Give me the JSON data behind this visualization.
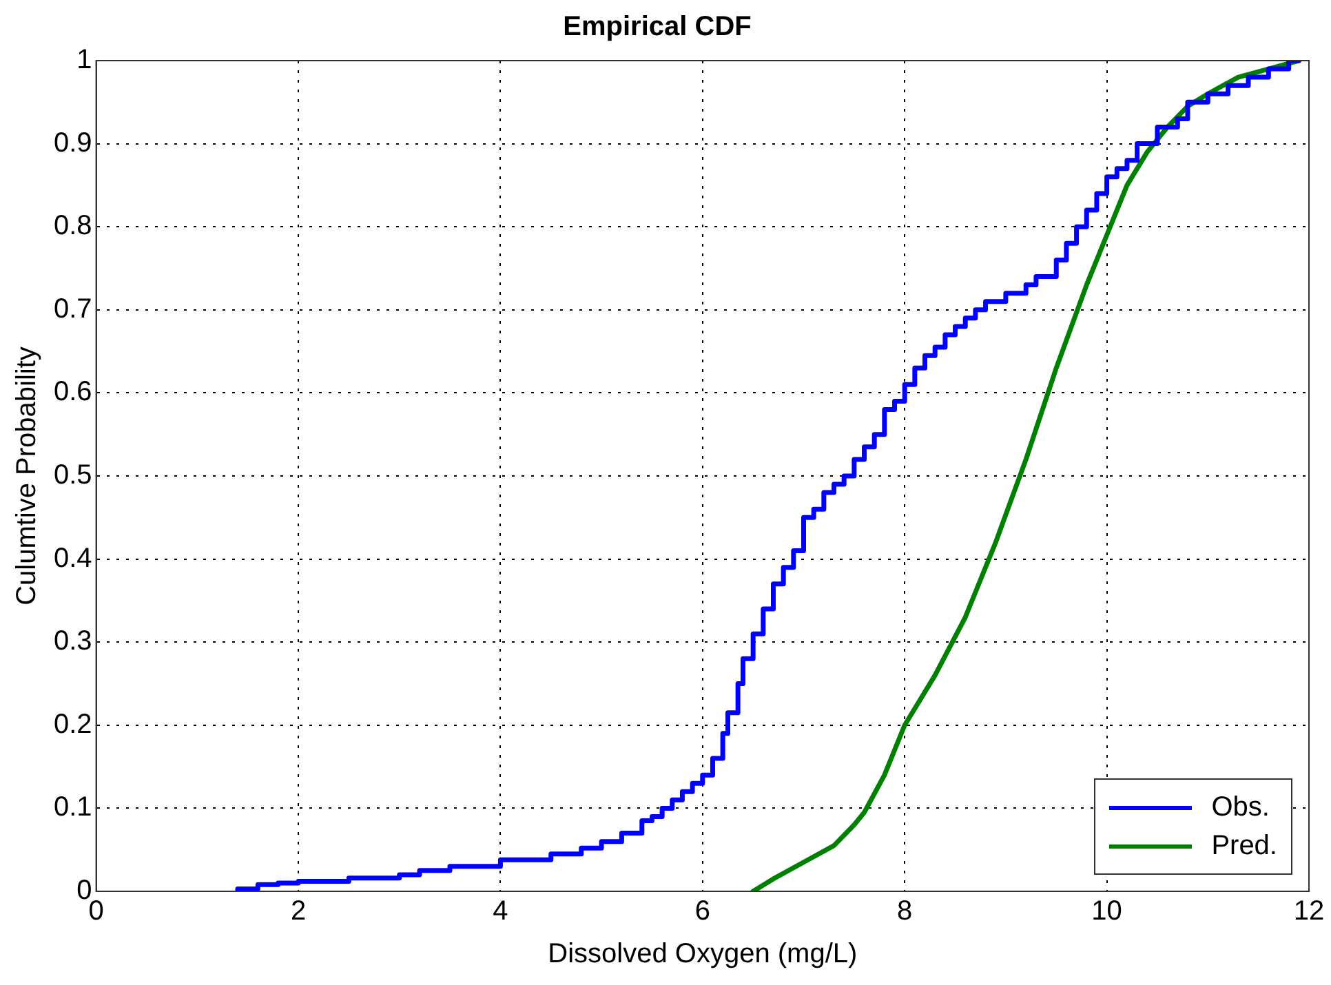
{
  "chart_data": {
    "type": "step",
    "title": "Empirical CDF",
    "xlabel": "Dissolved Oxygen (mg/L)",
    "ylabel": "Culumtive Probability",
    "xlim": [
      0,
      12
    ],
    "xticks": [
      0,
      2,
      4,
      6,
      8,
      10,
      12
    ],
    "ylim": [
      0,
      1
    ],
    "yticks": [
      0,
      0.1,
      0.2,
      0.3,
      0.4,
      0.5,
      0.6,
      0.7,
      0.8,
      0.9,
      1
    ],
    "grid": true,
    "legend": "bottom right",
    "series": [
      {
        "name": "Obs.",
        "color": "#0000ff",
        "x": [
          1.4,
          1.6,
          1.8,
          2.0,
          2.5,
          3.0,
          3.2,
          3.5,
          4.0,
          4.5,
          4.8,
          5.0,
          5.2,
          5.4,
          5.5,
          5.6,
          5.7,
          5.8,
          5.9,
          6.0,
          6.1,
          6.2,
          6.25,
          6.35,
          6.4,
          6.5,
          6.6,
          6.7,
          6.8,
          6.9,
          7.0,
          7.1,
          7.2,
          7.3,
          7.4,
          7.5,
          7.6,
          7.7,
          7.8,
          7.9,
          8.0,
          8.1,
          8.2,
          8.3,
          8.4,
          8.5,
          8.6,
          8.7,
          8.8,
          9.0,
          9.2,
          9.3,
          9.5,
          9.6,
          9.7,
          9.8,
          9.9,
          10.0,
          10.1,
          10.2,
          10.3,
          10.5,
          10.7,
          10.8,
          11.0,
          11.2,
          11.4,
          11.6,
          11.8,
          11.9
        ],
        "values": [
          0,
          0.003,
          0.008,
          0.01,
          0.012,
          0.016,
          0.02,
          0.025,
          0.03,
          0.038,
          0.045,
          0.052,
          0.06,
          0.07,
          0.085,
          0.09,
          0.1,
          0.11,
          0.12,
          0.13,
          0.14,
          0.16,
          0.19,
          0.215,
          0.25,
          0.28,
          0.31,
          0.34,
          0.37,
          0.39,
          0.41,
          0.45,
          0.46,
          0.48,
          0.49,
          0.5,
          0.52,
          0.535,
          0.55,
          0.58,
          0.59,
          0.61,
          0.63,
          0.645,
          0.655,
          0.67,
          0.68,
          0.69,
          0.7,
          0.71,
          0.72,
          0.73,
          0.74,
          0.76,
          0.78,
          0.8,
          0.82,
          0.84,
          0.86,
          0.87,
          0.88,
          0.9,
          0.92,
          0.93,
          0.95,
          0.96,
          0.97,
          0.98,
          0.99,
          1.0
        ]
      },
      {
        "name": "Pred.",
        "type": "line",
        "color": "#008000",
        "x": [
          6.5,
          6.7,
          7.0,
          7.3,
          7.5,
          7.6,
          7.8,
          8.0,
          8.3,
          8.6,
          8.9,
          9.2,
          9.5,
          9.8,
          10.0,
          10.2,
          10.4,
          10.6,
          10.8,
          11.0,
          11.3,
          11.6,
          11.9
        ],
        "values": [
          0,
          0.015,
          0.035,
          0.055,
          0.08,
          0.095,
          0.14,
          0.2,
          0.26,
          0.33,
          0.42,
          0.52,
          0.63,
          0.73,
          0.79,
          0.85,
          0.89,
          0.92,
          0.945,
          0.96,
          0.98,
          0.99,
          1.0
        ]
      }
    ]
  }
}
